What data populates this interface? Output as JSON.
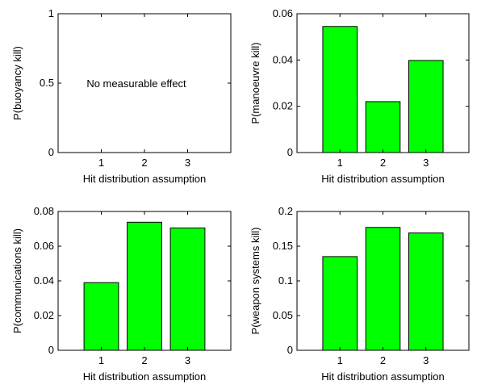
{
  "chart_data": [
    {
      "type": "bar",
      "categories": [
        "1",
        "2",
        "3"
      ],
      "values": [
        0,
        0,
        0
      ],
      "xlabel": "Hit distribution assumption",
      "ylabel": "P(buoyancy kill)",
      "ylim": [
        0,
        1
      ],
      "yticks": [
        "0",
        "0.5",
        "1"
      ],
      "annotation": "No measurable effect",
      "colors": {
        "bar": "#00ff00"
      }
    },
    {
      "type": "bar",
      "categories": [
        "1",
        "2",
        "3"
      ],
      "values": [
        0.0545,
        0.022,
        0.0398
      ],
      "xlabel": "Hit distribution assumption",
      "ylabel": "P(manoeuvre kill)",
      "ylim": [
        0,
        0.06
      ],
      "yticks": [
        "0",
        "0.02",
        "0.04",
        "0.06"
      ],
      "colors": {
        "bar": "#00ff00"
      }
    },
    {
      "type": "bar",
      "categories": [
        "1",
        "2",
        "3"
      ],
      "values": [
        0.039,
        0.0738,
        0.0705
      ],
      "xlabel": "Hit distribution assumption",
      "ylabel": "P(communications kill)",
      "ylim": [
        0,
        0.08
      ],
      "yticks": [
        "0",
        "0.02",
        "0.04",
        "0.06",
        "0.08"
      ],
      "colors": {
        "bar": "#00ff00"
      }
    },
    {
      "type": "bar",
      "categories": [
        "1",
        "2",
        "3"
      ],
      "values": [
        0.135,
        0.177,
        0.169
      ],
      "xlabel": "Hit distribution assumption",
      "ylabel": "P(weapon systems kill)",
      "ylim": [
        0,
        0.2
      ],
      "yticks": [
        "0",
        "0.05",
        "0.1",
        "0.15",
        "0.2"
      ],
      "colors": {
        "bar": "#00ff00"
      }
    }
  ]
}
